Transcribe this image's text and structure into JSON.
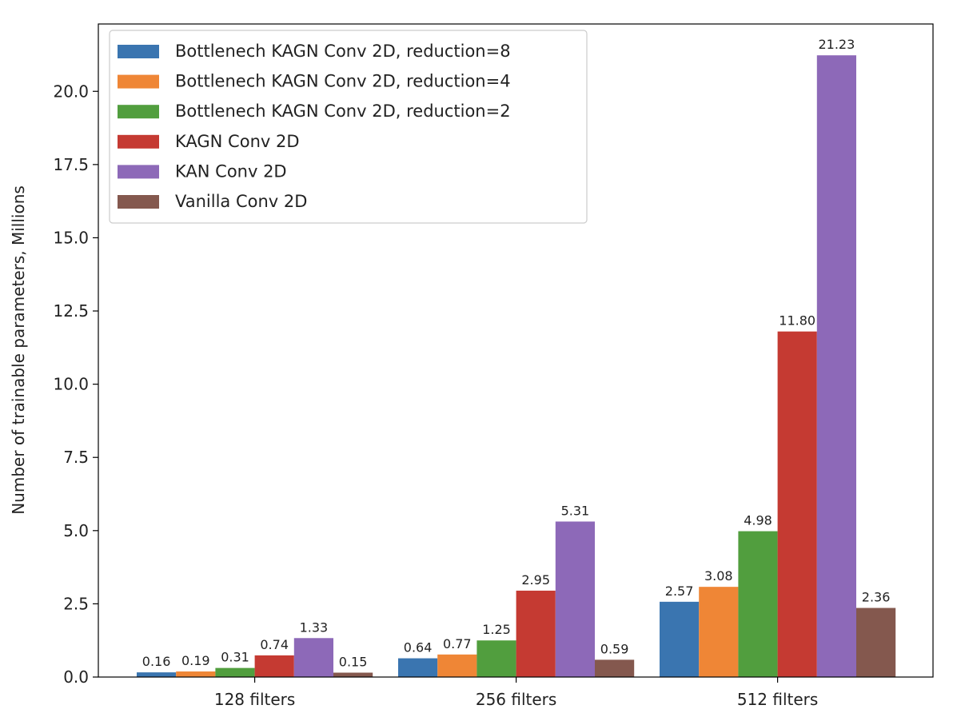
{
  "chart_data": {
    "type": "bar",
    "title": "",
    "xlabel": "",
    "ylabel": "Number of trainable parameters, Millions",
    "categories": [
      "128 filters",
      "256 filters",
      "512 filters"
    ],
    "ylim": [
      0,
      22.3
    ],
    "yticks": [
      0.0,
      2.5,
      5.0,
      7.5,
      10.0,
      12.5,
      15.0,
      17.5,
      20.0
    ],
    "ytick_labels": [
      "0.0",
      "2.5",
      "5.0",
      "7.5",
      "10.0",
      "12.5",
      "15.0",
      "17.5",
      "20.0"
    ],
    "grid": false,
    "legend_position": "top-left",
    "series": [
      {
        "name": "Bottlenech KAGN Conv 2D, reduction=8",
        "color": "#3a75b0",
        "values": [
          0.16,
          0.64,
          2.57
        ],
        "labels": [
          "0.16",
          "0.64",
          "2.57"
        ]
      },
      {
        "name": "Bottlenech KAGN Conv 2D, reduction=4",
        "color": "#ef8636",
        "values": [
          0.19,
          0.77,
          3.08
        ],
        "labels": [
          "0.19",
          "0.77",
          "3.08"
        ]
      },
      {
        "name": "Bottlenech KAGN Conv 2D, reduction=2",
        "color": "#519e3e",
        "values": [
          0.31,
          1.25,
          4.98
        ],
        "labels": [
          "0.31",
          "1.25",
          "4.98"
        ]
      },
      {
        "name": "KAGN Conv 2D",
        "color": "#c53a32",
        "values": [
          0.74,
          2.95,
          11.8
        ],
        "labels": [
          "0.74",
          "2.95",
          "11.80"
        ]
      },
      {
        "name": "KAN Conv 2D",
        "color": "#8d69b8",
        "values": [
          1.33,
          5.31,
          21.23
        ],
        "labels": [
          "1.33",
          "5.31",
          "21.23"
        ]
      },
      {
        "name": "Vanilla Conv 2D",
        "color": "#84584e",
        "values": [
          0.15,
          0.59,
          2.36
        ],
        "labels": [
          "0.15",
          "0.59",
          "2.36"
        ]
      }
    ]
  }
}
